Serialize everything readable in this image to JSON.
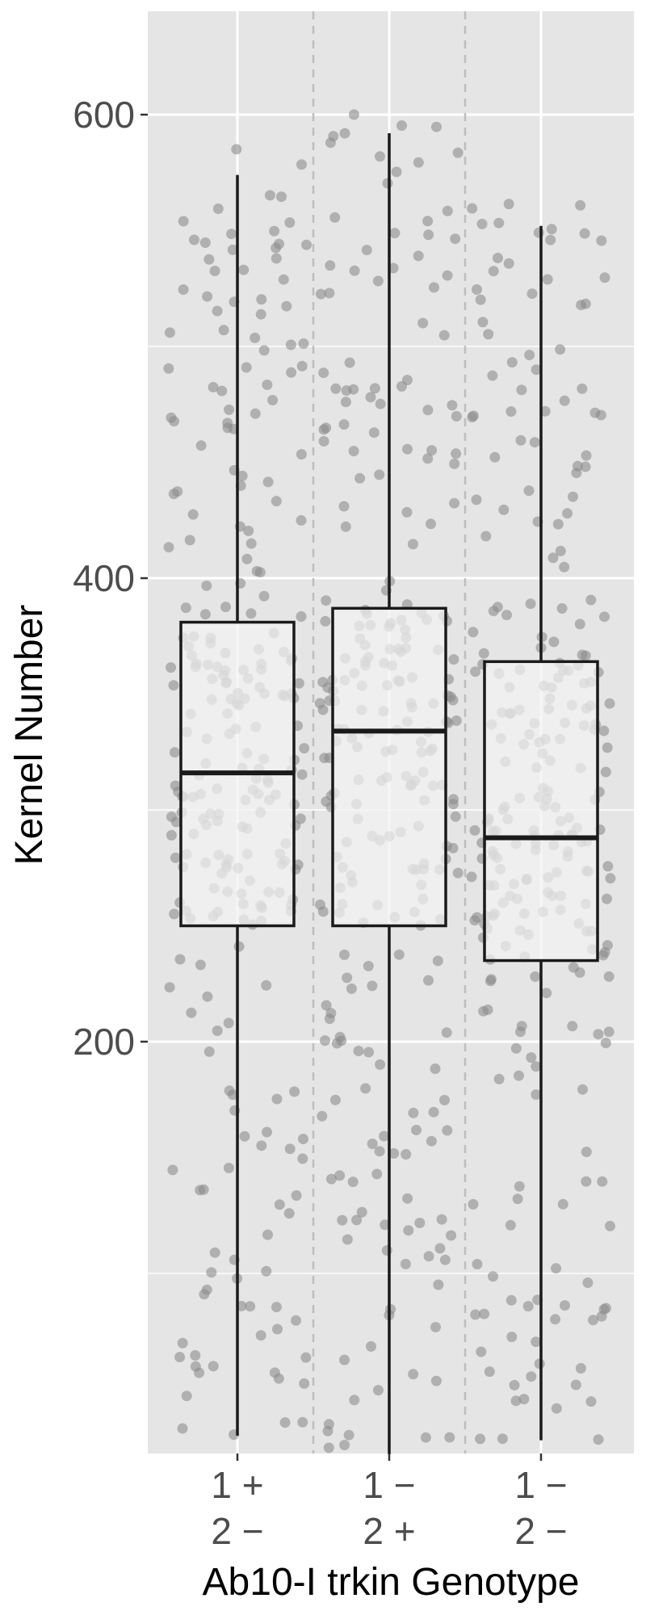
{
  "chart_data": {
    "type": "box",
    "title": "",
    "xlabel": "Ab10-I trkin Genotype",
    "ylabel": "Kernel Number",
    "ylim": [
      -20,
      640
    ],
    "yticks": [
      200,
      400,
      600
    ],
    "grid": true,
    "legend": "none",
    "categories": [
      {
        "line1": "1 +",
        "line2": "2 −"
      },
      {
        "line1": "1 −",
        "line2": "2 +"
      },
      {
        "line1": "1 −",
        "line2": "2 −"
      }
    ],
    "boxes": [
      {
        "whisker_low": 30,
        "q1": 250,
        "median": 316,
        "q3": 381,
        "whisker_high": 574
      },
      {
        "whisker_low": 22,
        "q1": 250,
        "median": 334,
        "q3": 387,
        "whisker_high": 592
      },
      {
        "whisker_low": 28,
        "q1": 235,
        "median": 288,
        "q3": 364,
        "whisker_high": 552
      }
    ],
    "point_count_per_group": 260
  },
  "colors": {
    "panel": "#e5e5e5",
    "grid": "#ffffff",
    "box_fill": "#f2f2f2",
    "box_line": "#1a1a1a",
    "points": "#8c8c8c",
    "separator": "#bdbdbd"
  }
}
